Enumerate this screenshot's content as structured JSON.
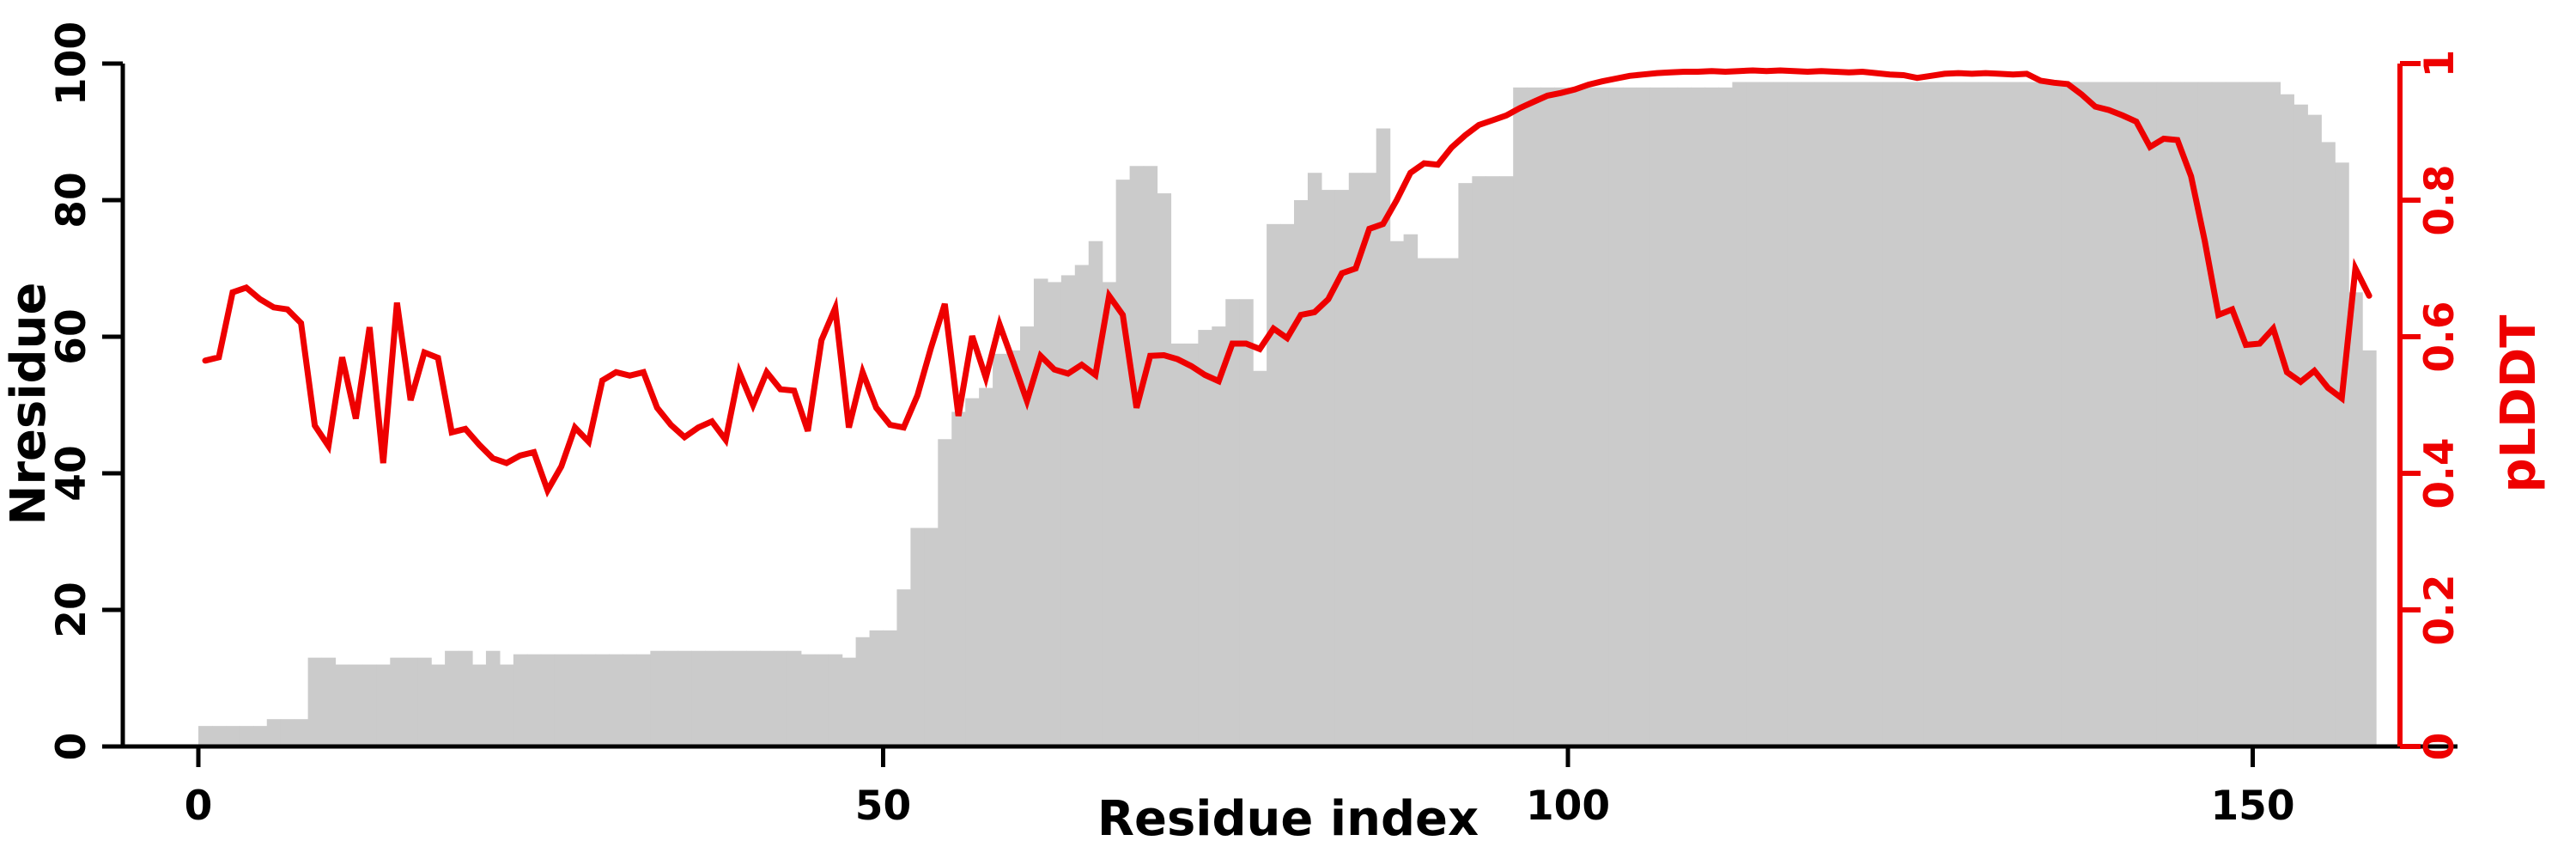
{
  "figure": {
    "background_color": "#ffffff",
    "bar_color": "#cbcbcb",
    "line_color": "#ee0000",
    "axis_color": "#000000",
    "right_axis_color": "#ee0000"
  },
  "chart_data": {
    "type": "bar",
    "subtype": "dual-axis-bar-and-line",
    "title": "",
    "xlabel": "Residue index",
    "ylabel_left": "Nresidue",
    "ylabel_right": "pLDDT",
    "grid": false,
    "legend_position": "none",
    "x_start": 1,
    "xlim": [
      0,
      165
    ],
    "ylim_left": [
      0,
      100
    ],
    "ylim_right": [
      0,
      1
    ],
    "x_ticks": {
      "values": [
        0,
        50,
        100,
        150
      ],
      "labels": [
        "0",
        "50",
        "100",
        "150"
      ]
    },
    "y_ticks_left": {
      "values": [
        0,
        20,
        40,
        60,
        80,
        100
      ],
      "labels": [
        "0",
        "20",
        "40",
        "60",
        "80",
        "100"
      ]
    },
    "y_ticks_right": {
      "values": [
        0,
        0.2,
        0.4,
        0.6,
        0.8,
        1
      ],
      "labels": [
        "0",
        "0.2",
        "0.4",
        "0.6",
        "0.8",
        "1"
      ]
    },
    "series": [
      {
        "name": "Nresidue",
        "type": "bar",
        "axis": "left",
        "color": "#cbcbcb",
        "values": [
          3,
          3,
          3,
          3,
          3,
          4,
          4,
          4,
          13,
          13,
          12,
          12,
          12,
          12,
          13,
          13,
          13,
          12,
          14,
          14,
          12,
          14,
          12,
          13.5,
          13.5,
          13.5,
          13.5,
          13.5,
          13.5,
          13.5,
          13.5,
          13.5,
          13.5,
          14,
          14,
          14,
          14,
          14,
          14,
          14,
          14,
          14,
          14,
          14,
          13.5,
          13.5,
          13.5,
          13,
          16,
          17,
          17,
          23,
          32,
          32,
          45,
          49,
          51,
          52.5,
          57.5,
          58,
          61.5,
          68.5,
          68,
          69,
          70.5,
          74,
          68,
          83,
          85,
          85,
          81,
          59,
          59,
          61,
          61.5,
          65.5,
          65.5,
          55,
          76.5,
          76.5,
          80,
          84,
          81.5,
          81.5,
          84,
          84,
          90.5,
          74,
          75,
          71.5,
          71.5,
          71.5,
          82.5,
          83.5,
          83.5,
          83.5,
          96.5,
          96.5,
          96.5,
          96.5,
          96.5,
          96.5,
          96.5,
          96.5,
          96.5,
          96.5,
          96.5,
          96.5,
          96.5,
          96.5,
          96.5,
          96.5,
          97.3,
          97.3,
          97.3,
          97.3,
          97.3,
          97.3,
          97.3,
          97.3,
          97.3,
          97.3,
          97.3,
          97.3,
          97.3,
          97.3,
          97.3,
          97.3,
          97.3,
          97.3,
          97.3,
          97.3,
          97.3,
          97.3,
          97.3,
          97.3,
          97.3,
          97.3,
          97.3,
          97.3,
          97.3,
          97.3,
          97.3,
          97.3,
          97.3,
          97.3,
          97.3,
          97.3,
          97.3,
          97.3,
          97.3,
          97.3,
          95.5,
          94,
          92.5,
          88.5,
          85.5,
          66.5,
          58
        ]
      },
      {
        "name": "pLDDT",
        "type": "line",
        "axis": "right",
        "color": "#ee0000",
        "values": [
          0.565,
          0.57,
          0.665,
          0.672,
          0.655,
          0.643,
          0.64,
          0.62,
          0.47,
          0.44,
          0.57,
          0.48,
          0.614,
          0.415,
          0.65,
          0.507,
          0.577,
          0.569,
          0.46,
          0.465,
          0.442,
          0.422,
          0.415,
          0.426,
          0.431,
          0.375,
          0.41,
          0.467,
          0.446,
          0.536,
          0.548,
          0.543,
          0.548,
          0.496,
          0.471,
          0.453,
          0.467,
          0.476,
          0.449,
          0.548,
          0.5,
          0.548,
          0.523,
          0.521,
          0.462,
          0.595,
          0.642,
          0.467,
          0.548,
          0.496,
          0.471,
          0.467,
          0.514,
          0.584,
          0.648,
          0.484,
          0.601,
          0.54,
          0.618,
          0.563,
          0.506,
          0.572,
          0.552,
          0.546,
          0.559,
          0.544,
          0.66,
          0.632,
          0.496,
          0.572,
          0.573,
          0.567,
          0.557,
          0.544,
          0.535,
          0.59,
          0.59,
          0.582,
          0.612,
          0.598,
          0.632,
          0.636,
          0.655,
          0.693,
          0.7,
          0.758,
          0.765,
          0.8,
          0.84,
          0.854,
          0.852,
          0.877,
          0.895,
          0.91,
          0.917,
          0.924,
          0.935,
          0.944,
          0.953,
          0.957,
          0.962,
          0.969,
          0.974,
          0.978,
          0.982,
          0.984,
          0.986,
          0.987,
          0.988,
          0.988,
          0.989,
          0.988,
          0.989,
          0.99,
          0.989,
          0.99,
          0.989,
          0.988,
          0.989,
          0.988,
          0.987,
          0.988,
          0.986,
          0.984,
          0.983,
          0.979,
          0.982,
          0.985,
          0.986,
          0.985,
          0.986,
          0.985,
          0.984,
          0.985,
          0.975,
          0.972,
          0.97,
          0.955,
          0.937,
          0.932,
          0.924,
          0.915,
          0.878,
          0.89,
          0.888,
          0.835,
          0.74,
          0.632,
          0.64,
          0.588,
          0.59,
          0.612,
          0.548,
          0.534,
          0.55,
          0.525,
          0.51,
          0.7,
          0.66
        ]
      }
    ]
  }
}
